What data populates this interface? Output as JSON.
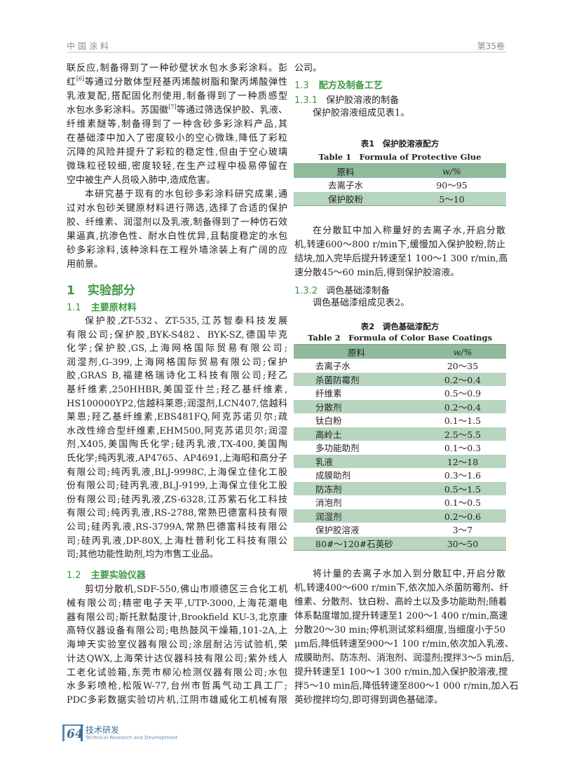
{
  "header": {
    "journal": "中国涂料",
    "volume": "第35卷"
  },
  "colors": {
    "heading_green": "#3d9a42",
    "table_header": "#8fbb9c",
    "table_alt_row": "#b8d5bf",
    "footer_blue": "#3b6e9a"
  },
  "left": {
    "p1": {
      "lines": [
        "联反应,制备得到了一种砂壁状水包水多彩涂料。彭",
        {
          "text": "红",
          "sup": "[6]",
          "rest": "等通过分散体型羟基丙烯酸树脂和聚丙烯酸弹性"
        },
        "乳液复配,搭配固化剂使用,制备得到了一种质感型",
        {
          "text": "水包水多彩涂料。苏国徽",
          "sup": "[7]",
          "rest": "等通过筛选保护胶、乳液、"
        },
        "纤维素醚等,制备得到了一种含砂多彩涂料产品,其",
        "在基础漆中加入了密度较小的空心微珠,降低了彩粒",
        "沉降的风险并提升了彩粒的稳定性,但由于空心玻璃",
        "微珠粒径较细,密度较轻,在生产过程中极易停留在",
        "空中被生产人员吸入肺中,造成危害。"
      ]
    },
    "p2": {
      "lines": [
        "本研究基于现有的水包砂多彩涂料研究成果,通",
        "过对水包砂关键原材料进行筛选,选择了合适的保护",
        "胶、纤维素、润湿剂以及乳液,制备得到了一种仿石效",
        "果逼真,抗渗色性、耐水白性优异,且黏度稳定的水包",
        "砂多彩涂料,该种涂料在工程外墙涂装上有广阔的应",
        "用前景。"
      ]
    },
    "sec1": {
      "num": "1",
      "title": "实验部分"
    },
    "sec11": {
      "num": "1.1",
      "title": "主要原材料"
    },
    "p3": {
      "lines": [
        "保护胶,ZT-532、ZT-535,江苏智泰科技发展",
        "有限公司;保护胶,BYK-S482、BYK-SZ,德国毕克",
        "化学;保护胶,GS,上海网格国际贸易有限公司;",
        "润湿剂,G-399,上海网格国际贸易有限公司;保护",
        "胶,GRAS B,福建格瑞诗化工科技有限公司;羟乙",
        "基纤维素,250HHBR,美国亚什兰;羟乙基纤维素,",
        "HS100000YP2,信越科莱恩;润湿剂,LCN407,信越科",
        "莱恩;羟乙基纤维素,EBS481FQ,阿克苏诺贝尔;疏",
        "水改性缔合型纤维素,EHM500,阿克苏诺贝尔;润湿",
        "剂,X405,美国陶氏化学;硅丙乳液,TX-400,美国陶",
        "氏化学;纯丙乳液,AP4765、AP4691,上海昭和高分子",
        "有限公司;纯丙乳液,BLJ-9998C,上海保立佳化工股",
        "份有限公司;硅丙乳液,BLJ-9199,上海保立佳化工股",
        "份有限公司;硅丙乳液,ZS-6328,江苏紫石化工科技",
        "有限公司;纯丙乳液,RS-2788,常熟巴德富科技有限",
        "公司;硅丙乳液,RS-3799A,常熟巴德富科技有限公",
        "司;硅丙乳液,DP-80X,上海杜普利化工科技有限公",
        "司;其他功能性助剂,均为市售工业品。"
      ]
    },
    "sec12": {
      "num": "1.2",
      "title": "主要实验仪器"
    },
    "p4": {
      "lines": [
        "剪切分散机,SDF-550,佛山市顺德区三合化工机",
        "械有限公司;精密电子天平,UTP-3000,上海花潮电",
        "器有限公司;斯托默黏度计,Brookfield KU-3,北京康",
        "高特仪器设备有限公司;电热鼓风干燥箱,101-2A,上",
        "海坤天实验室仪器有限公司;涂层耐沾污试验机,荣",
        "计达QWX,上海荣计达仪器科技有限公司;紫外线人",
        "工老化试验箱,东莞市柳沁检测仪器有限公司;水包",
        "水多彩喷枪,松阪W-77,台州市哲禹气动工具工厂;",
        "PDC多彩数据实验切片机,江阴市雄威化工机械有限"
      ]
    }
  },
  "right": {
    "p0": {
      "lines": [
        "公司。"
      ]
    },
    "sec13": {
      "num": "1.3",
      "title": "配方及制备工艺"
    },
    "sec131": {
      "num": "1.3.1",
      "title": "保护胶溶液的制备"
    },
    "p5": {
      "lines": [
        "保护胶溶液组成见表1。"
      ]
    },
    "table1": {
      "caption_cn": "表1　保护胶溶液配方",
      "caption_en": "Table 1　Formula of Protective Glue",
      "headers": [
        "原料",
        "w/%"
      ],
      "rows": [
        [
          "去离子水",
          "90～95"
        ],
        [
          "保护胶粉",
          "5～10"
        ]
      ]
    },
    "p6": {
      "lines": [
        "在分散缸中加入称量好的去离子水,开启分散",
        "机,转速600～800 r/min下,缓慢加入保护胶粉,防止",
        "结块,加入完毕后提升转速至1 100～1 300 r/min,高",
        "速分散45～60 min后,得到保护胶溶液。"
      ]
    },
    "sec132": {
      "num": "1.3.2",
      "title": "调色基础漆制备"
    },
    "p7": {
      "lines": [
        "调色基础漆组成见表2。"
      ]
    },
    "table2": {
      "caption_cn": "表2　调色基础漆配方",
      "caption_en": "Table 2　Formula of Color Base Coatings",
      "headers": [
        "原料",
        "w/%"
      ],
      "rows": [
        [
          "去离子水",
          "20～35"
        ],
        [
          "杀菌防霉剂",
          "0.2～0.4"
        ],
        [
          "纤维素",
          "0.5～0.9"
        ],
        [
          "分散剂",
          "0.2～0.4"
        ],
        [
          "钛白粉",
          "0.1～1.5"
        ],
        [
          "高岭土",
          "2.5～5.5"
        ],
        [
          "多功能助剂",
          "0.1～0.3"
        ],
        [
          "乳液",
          "12～18"
        ],
        [
          "成膜助剂",
          "0.3～1.6"
        ],
        [
          "防冻剂",
          "0.5～1.5"
        ],
        [
          "消泡剂",
          "0.1～0.5"
        ],
        [
          "润湿剂",
          "0.2～0.6"
        ],
        [
          "保护胶溶液",
          "3～7"
        ],
        [
          "80#～120#石英砂",
          "30～50"
        ]
      ]
    },
    "p8": {
      "lines": [
        "将计量的去离子水加入到分散缸中,开启分散",
        "机,转速400～600 r/min下,依次加入杀菌防霉剂、纤",
        "维素、分散剂、钛白粉、高岭土以及多功能助剂;随着",
        "体系黏度增加,提升转速至1 200～1 400 r/min,高速",
        "分散20～30 min;停机测试浆料细度,当细度小于50",
        "μm后,降低转速至900～1 100 r/min,依次加入乳液、",
        "成膜助剂、防冻剂、消泡剂、润湿剂;搅拌3～5 min后,",
        "提升转速至1 100～1 300 r/min,加入保护胶溶液,搅",
        "拌5～10 min后,降低转速至800～1 000 r/min,加入石",
        "英砂搅拌均匀,即可得到调色基础漆。"
      ]
    }
  },
  "footer": {
    "page": "64",
    "section_cn": "技术研发",
    "section_en": "Technical Research and Development"
  }
}
